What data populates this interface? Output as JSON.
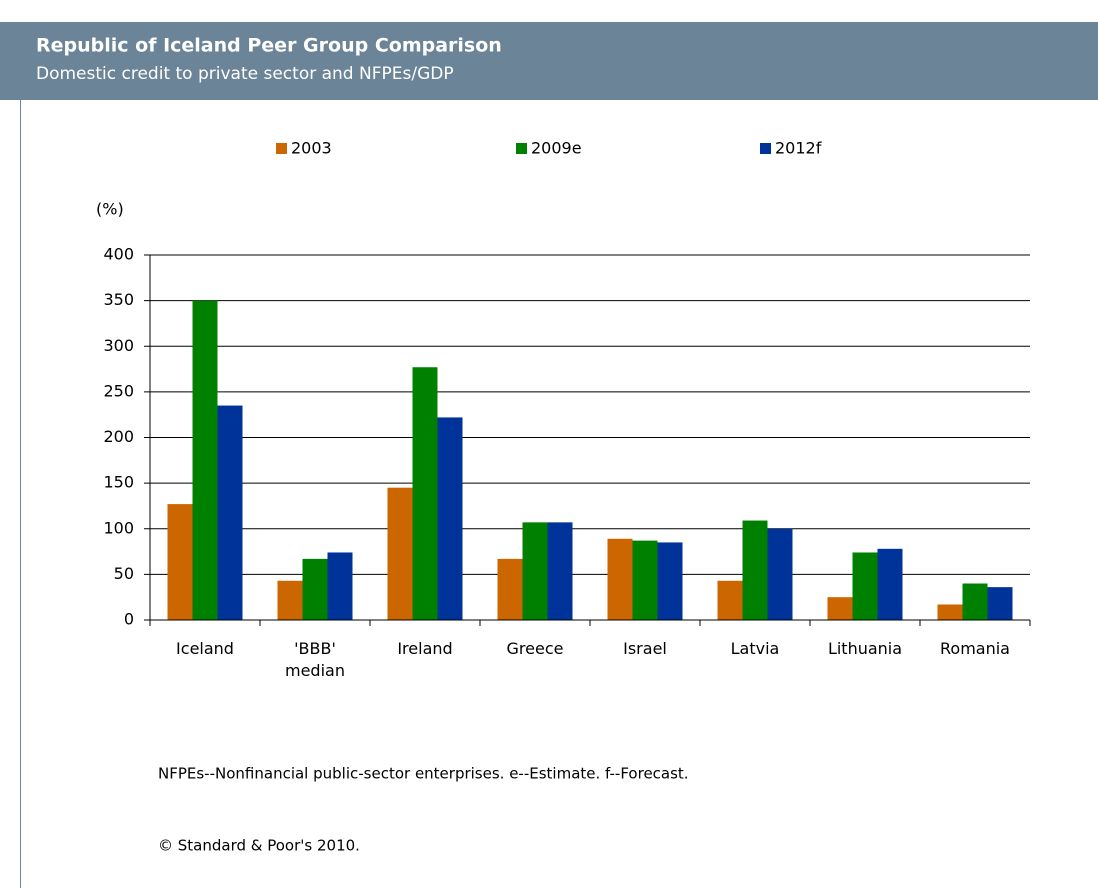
{
  "chart_data": {
    "type": "bar",
    "title": "Republic of Iceland Peer Group Comparison",
    "subtitle": "Domestic credit to private sector and NFPEs/GDP",
    "y_label": "(%)",
    "categories": [
      "Iceland",
      "'BBB' median",
      "Ireland",
      "Greece",
      "Israel",
      "Latvia",
      "Lithuania",
      "Romania"
    ],
    "series": [
      {
        "name": "2003",
        "color": "#cc6600",
        "values": [
          127,
          43,
          145,
          67,
          89,
          43,
          25,
          17
        ]
      },
      {
        "name": "2009e",
        "color": "#008000",
        "values": [
          350,
          67,
          277,
          107,
          87,
          109,
          74,
          40
        ]
      },
      {
        "name": "2012f",
        "color": "#003399",
        "values": [
          235,
          74,
          222,
          107,
          85,
          100,
          78,
          36
        ]
      }
    ],
    "ylim": [
      0,
      400
    ],
    "yticks": [
      0,
      50,
      100,
      150,
      200,
      250,
      300,
      350,
      400
    ],
    "grid": true,
    "legend": "top",
    "notes": [
      "NFPEs--Nonfinancial public-sector enterprises. e--Estimate. f--Forecast.",
      "© Standard & Poor's 2010."
    ]
  }
}
